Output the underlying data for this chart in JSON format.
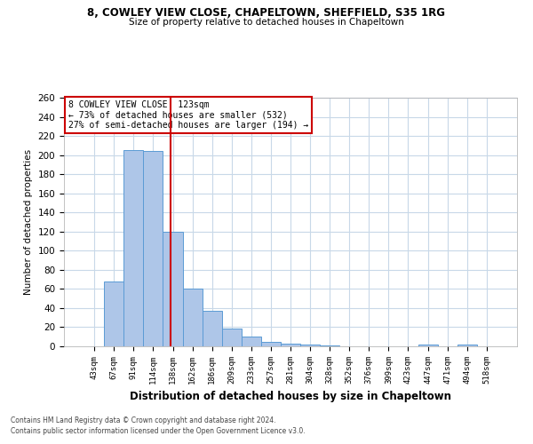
{
  "title1": "8, COWLEY VIEW CLOSE, CHAPELTOWN, SHEFFIELD, S35 1RG",
  "title2": "Size of property relative to detached houses in Chapeltown",
  "xlabel": "Distribution of detached houses by size in Chapeltown",
  "ylabel": "Number of detached properties",
  "footnote1": "Contains HM Land Registry data © Crown copyright and database right 2024.",
  "footnote2": "Contains public sector information licensed under the Open Government Licence v3.0.",
  "annotation_line1": "8 COWLEY VIEW CLOSE: 123sqm",
  "annotation_line2": "← 73% of detached houses are smaller (532)",
  "annotation_line3": "27% of semi-detached houses are larger (194) →",
  "categories": [
    "43sqm",
    "67sqm",
    "91sqm",
    "114sqm",
    "138sqm",
    "162sqm",
    "186sqm",
    "209sqm",
    "233sqm",
    "257sqm",
    "281sqm",
    "304sqm",
    "328sqm",
    "352sqm",
    "376sqm",
    "399sqm",
    "423sqm",
    "447sqm",
    "471sqm",
    "494sqm",
    "518sqm"
  ],
  "values": [
    0,
    68,
    205,
    204,
    120,
    60,
    37,
    19,
    10,
    5,
    3,
    2,
    1,
    0,
    0,
    0,
    0,
    2,
    0,
    2,
    0
  ],
  "bar_color": "#aec6e8",
  "bar_edge_color": "#5b9bd5",
  "vline_color": "#cc0000",
  "ylim": [
    0,
    260
  ],
  "yticks": [
    0,
    20,
    40,
    60,
    80,
    100,
    120,
    140,
    160,
    180,
    200,
    220,
    240,
    260
  ],
  "annotation_box_color": "#cc0000",
  "background_color": "#ffffff",
  "grid_color": "#c8d8e8"
}
